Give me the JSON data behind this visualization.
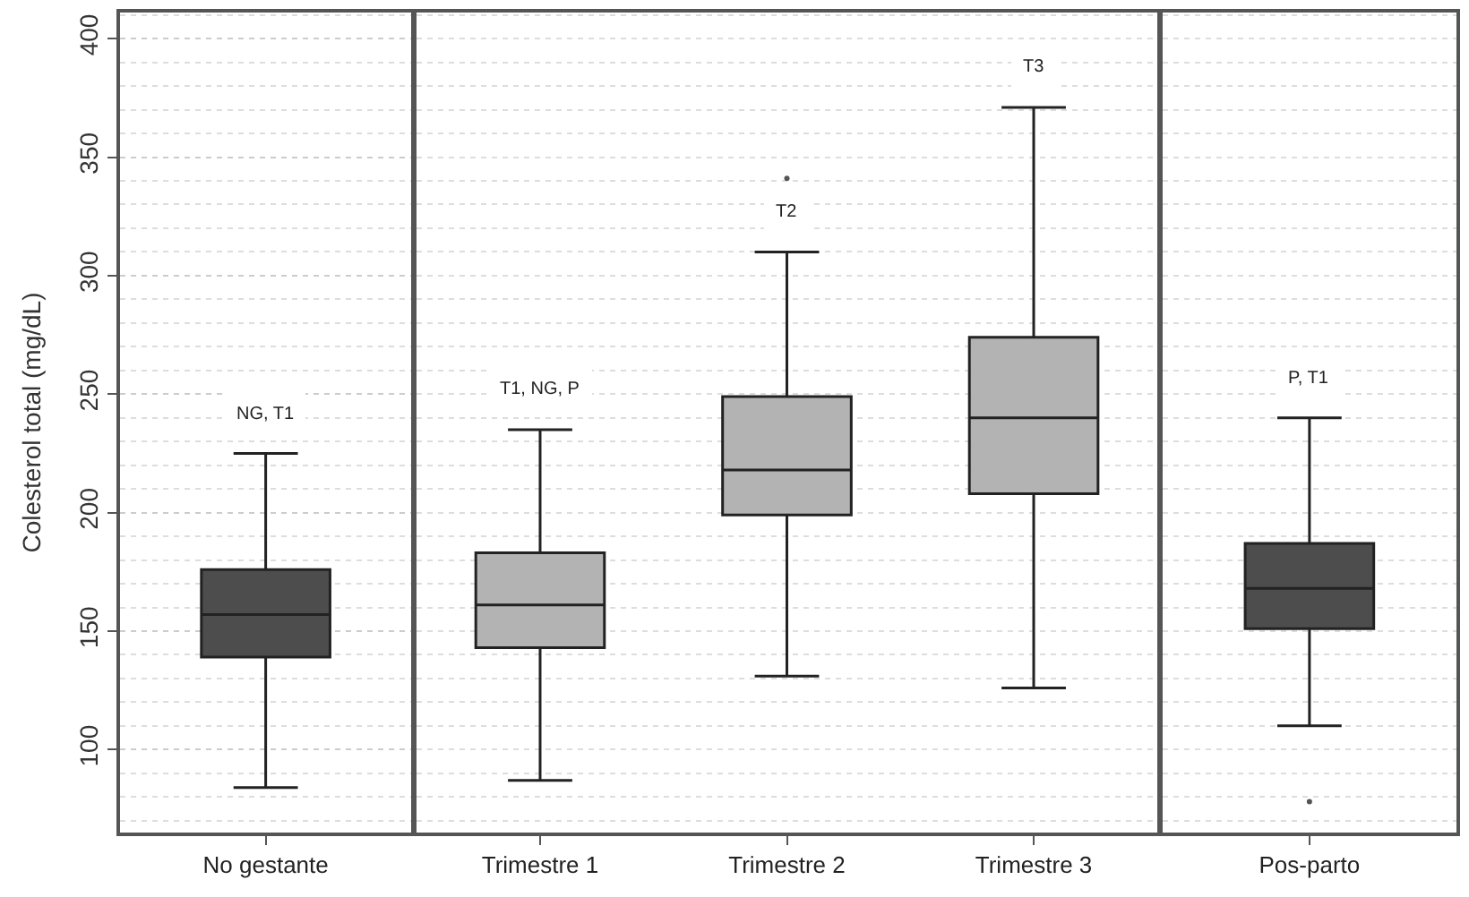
{
  "chart_data": [
    {
      "type": "box",
      "ylabel": "Colesterol total (mg/dL)",
      "categories": [
        "No gestante"
      ],
      "colors": [
        "#4d4d4d"
      ],
      "boxes": [
        {
          "low": 84,
          "q1": 139,
          "median": 157,
          "q3": 176,
          "high": 225
        }
      ],
      "ylim": [
        65,
        411
      ],
      "yticks": [
        100,
        150,
        200,
        250,
        300,
        350,
        400
      ],
      "grid": true,
      "annotations": [
        "NG, T1"
      ]
    },
    {
      "type": "box",
      "categories": [
        "Trimestre 1",
        "Trimestre 2",
        "Trimestre 3"
      ],
      "colors": [
        "#b3b3b3",
        "#b3b3b3",
        "#b3b3b3"
      ],
      "boxes": [
        {
          "low": 87,
          "q1": 143,
          "median": 161,
          "q3": 183,
          "high": 235
        },
        {
          "low": 131,
          "q1": 199,
          "median": 218,
          "q3": 249,
          "high": 310,
          "outliers": [
            341
          ]
        },
        {
          "low": 126,
          "q1": 208,
          "median": 240,
          "q3": 274,
          "high": 371
        }
      ],
      "ylim": [
        65,
        411
      ],
      "tick_labels": "x",
      "grid": true,
      "annotations": [
        "T1, NG, P",
        "T2",
        "T3"
      ]
    },
    {
      "type": "box",
      "categories": [
        "Pos-parto"
      ],
      "colors": [
        "#4d4d4d"
      ],
      "boxes": [
        {
          "low": 110,
          "q1": 151,
          "median": 168,
          "q3": 187,
          "high": 240,
          "outliers": [
            78
          ]
        }
      ],
      "ylim": [
        65,
        411
      ],
      "tick_labels": "x",
      "grid": true,
      "annotations": [
        "P, T1"
      ]
    }
  ]
}
